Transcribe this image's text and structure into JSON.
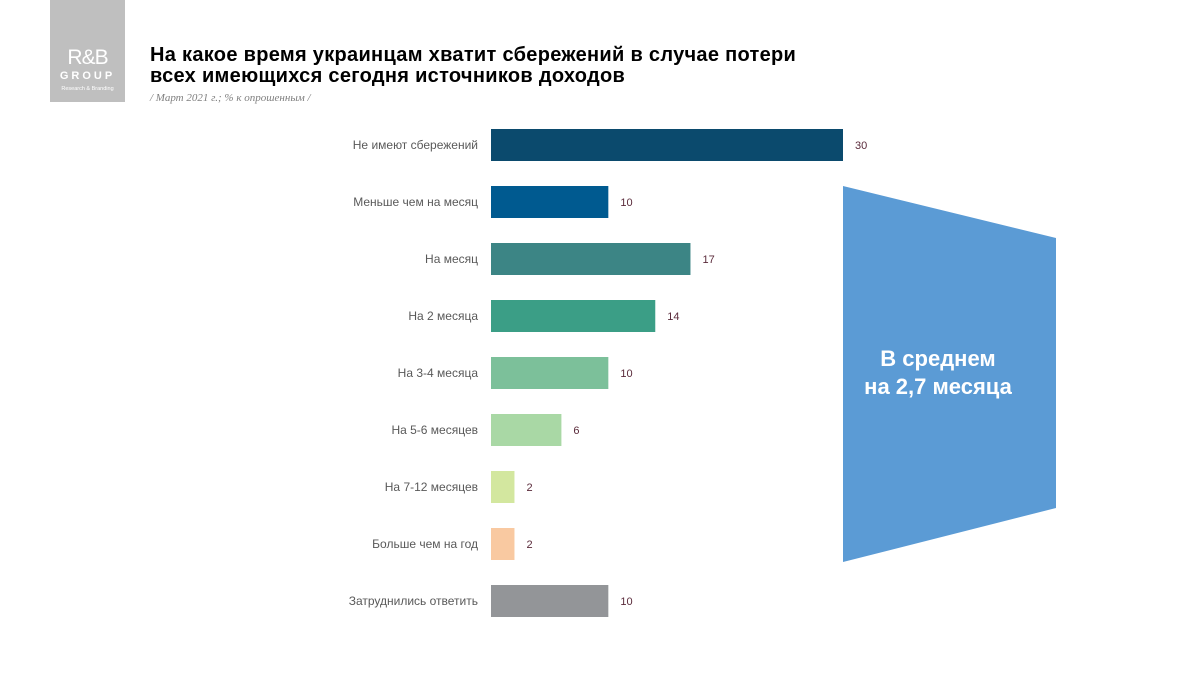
{
  "logo": {
    "text": "R&B",
    "group": "GROUP",
    "tagline": "Research & Branding"
  },
  "chart_data": {
    "type": "bar",
    "orientation": "horizontal",
    "title": "На какое время украинцам хватит сбережений в случае потери всех имеющихся сегодня источников доходов",
    "title_lines": [
      "На какое время украинцам хватит сбережений в случае потери",
      "всех имеющихся сегодня источников доходов"
    ],
    "subtitle": "/ Март 2021 г.; % к опрошенным /",
    "categories": [
      "Не имеют сбережений",
      "Меньше чем на месяц",
      "На месяц",
      "На 2 месяца",
      "На 3-4 месяца",
      "На 5-6 месяцев",
      "На 7-12 месяцев",
      "Больше чем на год",
      "Затруднились ответить"
    ],
    "values": [
      30,
      10,
      17,
      14,
      10,
      6,
      2,
      2,
      10
    ],
    "colors": [
      "#0b4a6d",
      "#005a90",
      "#3c8585",
      "#3b9e86",
      "#7cc09a",
      "#a9d8a5",
      "#d3e79f",
      "#f9c9a1",
      "#939598"
    ],
    "xlim": [
      0,
      30
    ],
    "grid": false,
    "annotation": {
      "lines": [
        "В среднем",
        "на 2,7 месяца"
      ],
      "color": "#5b9bd5"
    }
  }
}
